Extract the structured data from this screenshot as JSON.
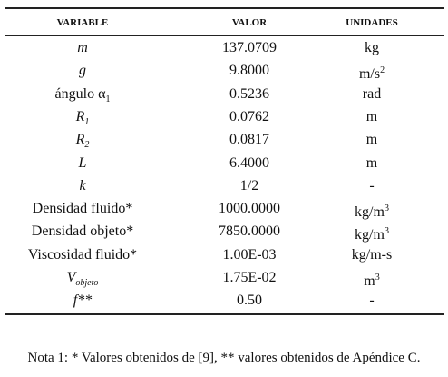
{
  "table": {
    "header": [
      "VARIABLE",
      "VALOR",
      "UNIDADES"
    ],
    "rows": [
      [
        {
          "text": "m",
          "italic": true
        },
        {
          "text": "137.0709"
        },
        {
          "text": "kg"
        }
      ],
      [
        {
          "text": "g",
          "italic": true
        },
        {
          "text": "9.8000"
        },
        {
          "text": "m/s",
          "sup": "2"
        }
      ],
      [
        {
          "text": "ángulo α",
          "sub": "1"
        },
        {
          "text": "0.5236"
        },
        {
          "text": "rad"
        }
      ],
      [
        {
          "text": "R",
          "italic": true,
          "sub": "1"
        },
        {
          "text": "0.0762"
        },
        {
          "text": "m"
        }
      ],
      [
        {
          "text": "R",
          "italic": true,
          "sub": "2"
        },
        {
          "text": "0.0817"
        },
        {
          "text": "m"
        }
      ],
      [
        {
          "text": "L",
          "italic": true
        },
        {
          "text": "6.4000"
        },
        {
          "text": "m"
        }
      ],
      [
        {
          "text": "k",
          "italic": true
        },
        {
          "text": "1/2"
        },
        {
          "text": "-"
        }
      ],
      [
        {
          "text": "Densidad fluido*"
        },
        {
          "text": "1000.0000"
        },
        {
          "text": "kg/m",
          "sup": "3"
        }
      ],
      [
        {
          "text": "Densidad objeto*"
        },
        {
          "text": "7850.0000"
        },
        {
          "text": "kg/m",
          "sup": "3"
        }
      ],
      [
        {
          "text": "Viscosidad fluido*"
        },
        {
          "text": "1.00E-03"
        },
        {
          "text": "kg/m-s"
        }
      ],
      [
        {
          "text": "V",
          "italic": true,
          "sub": "objeto"
        },
        {
          "text": "1.75E-02"
        },
        {
          "text": "m",
          "sup": "3"
        }
      ],
      [
        {
          "text": "f**",
          "italic": true
        },
        {
          "text": "0.50"
        },
        {
          "text": "-"
        }
      ]
    ]
  },
  "note": "Nota 1: * Valores obtenidos de [9], ** valores obtenidos de Apéndice C."
}
